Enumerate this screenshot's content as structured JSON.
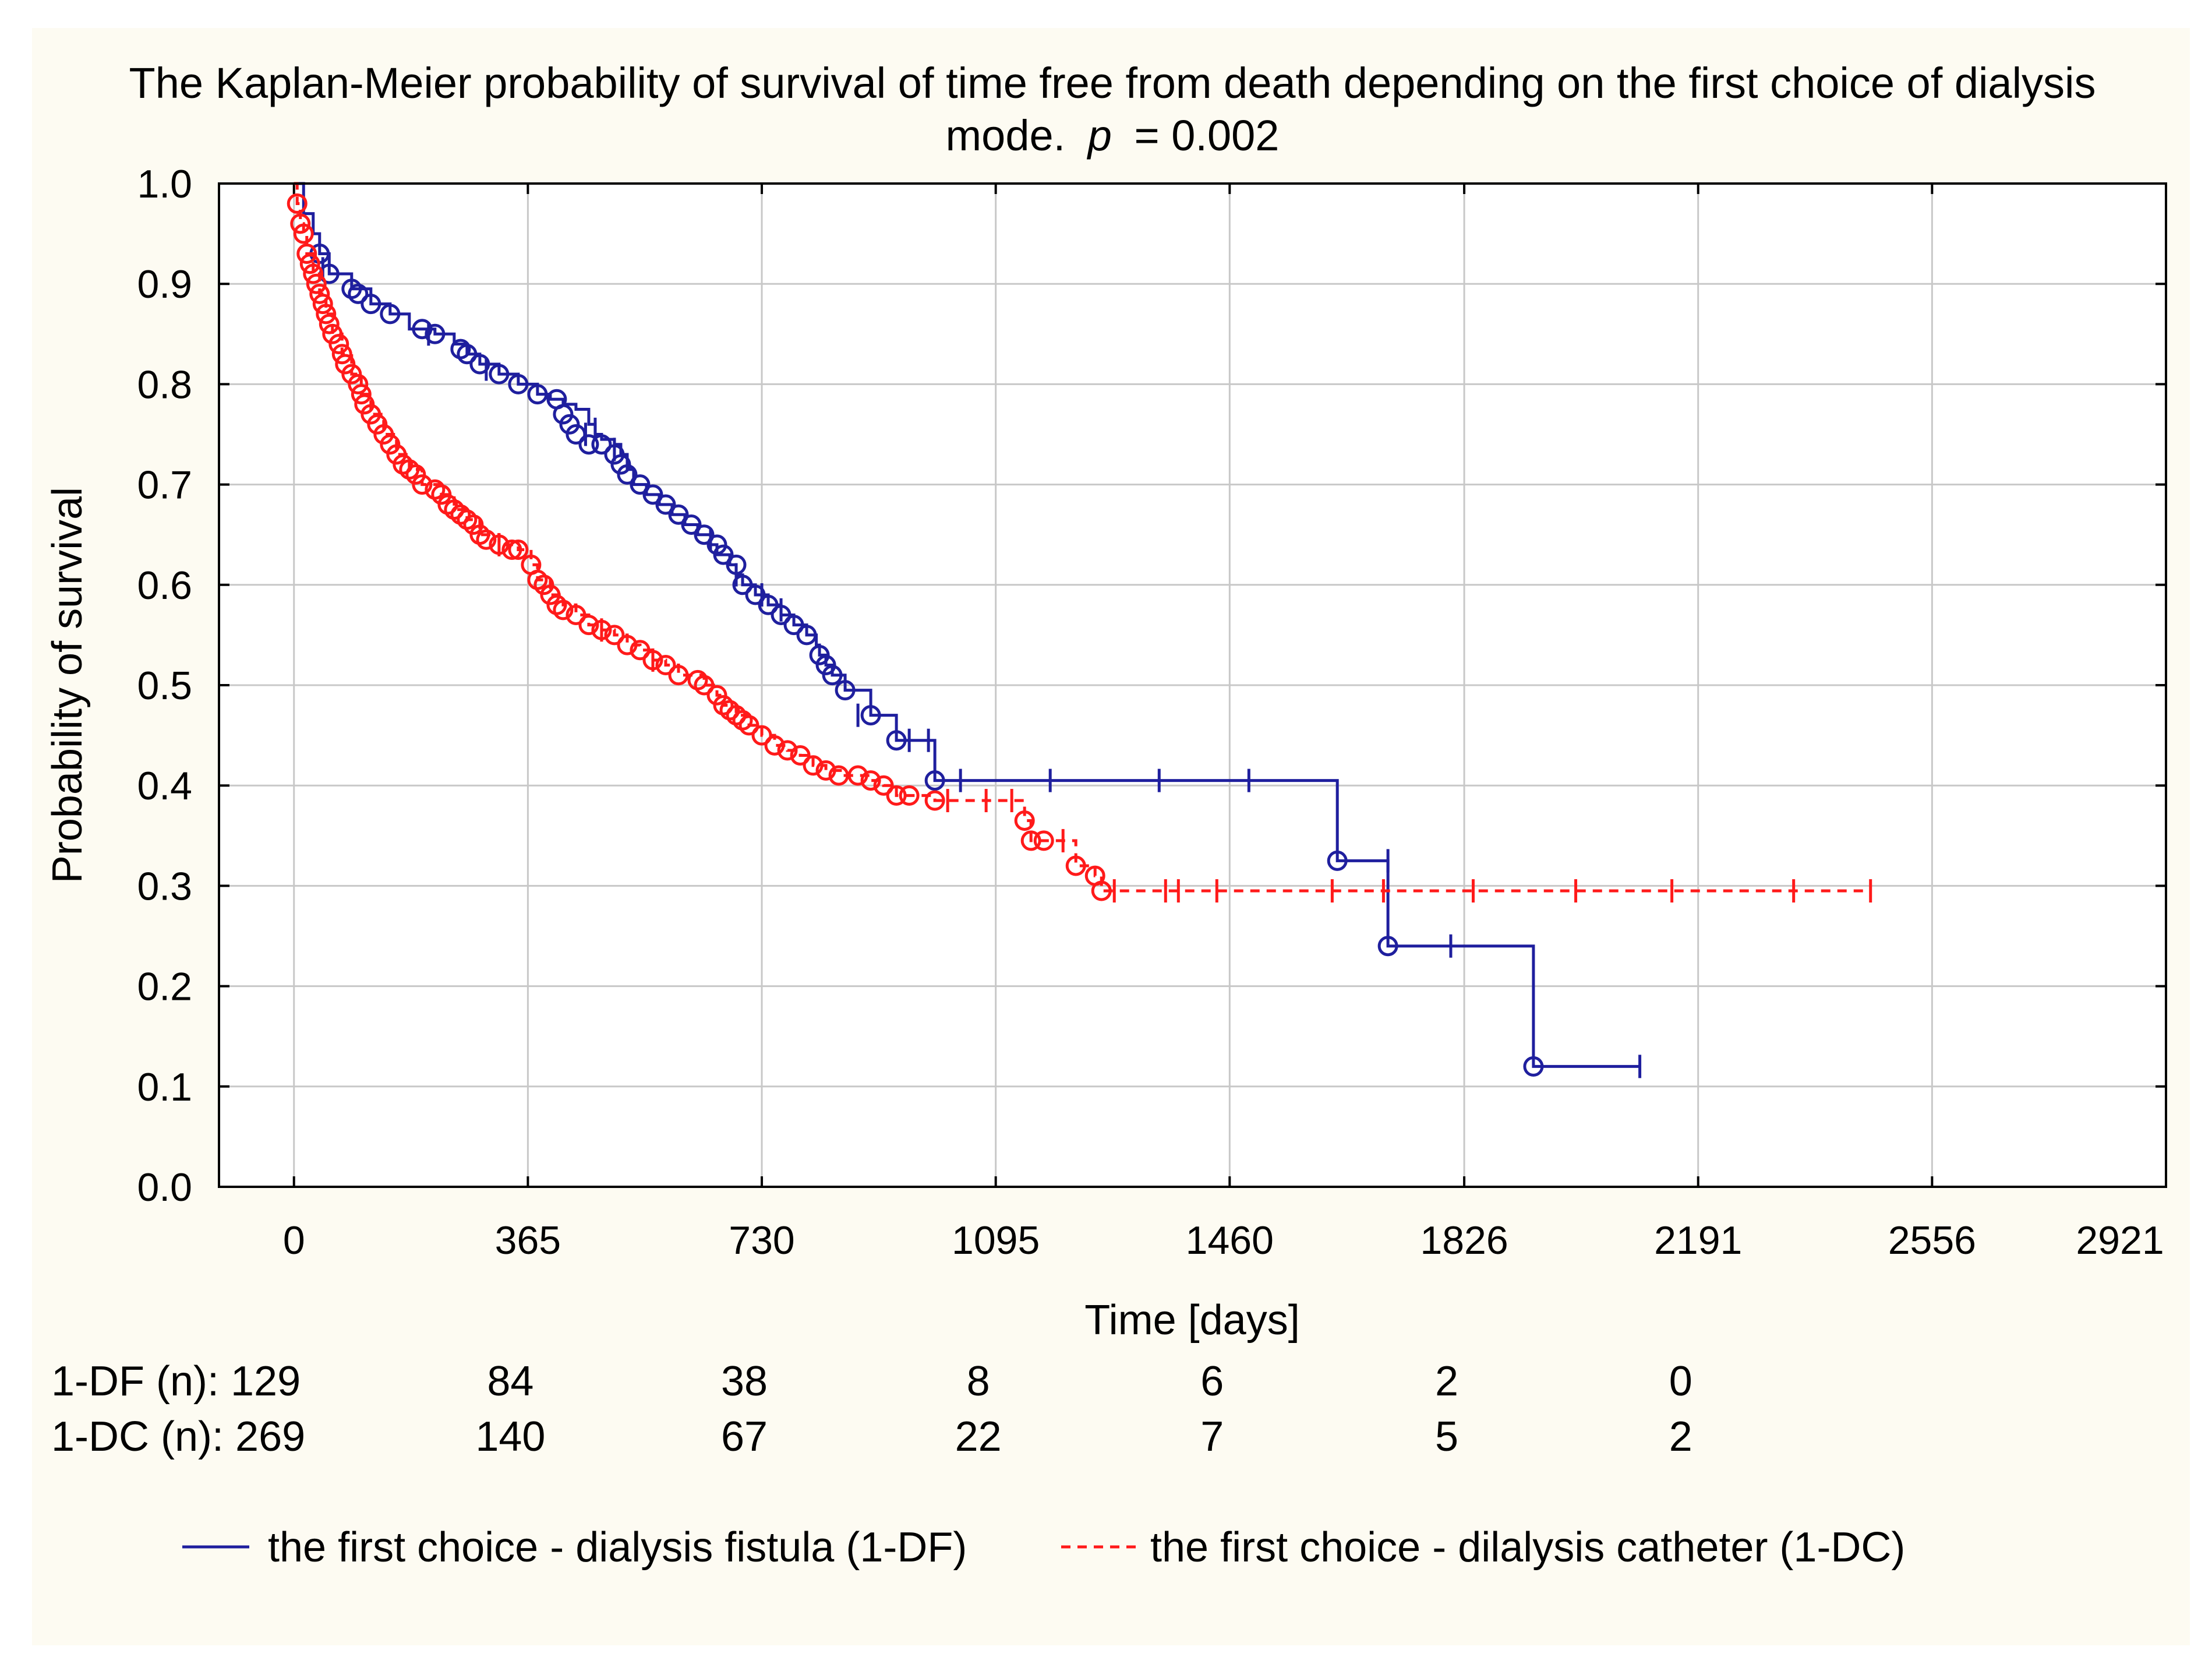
{
  "chart_data": {
    "type": "line",
    "subtype": "kaplan-meier",
    "title": "The Kaplan-Meier probability of survival of time free from death depending on the first choice of dialysis",
    "title_line2_prefix": "mode.",
    "title_p_symbol": "p",
    "title_p_value": "= 0.002",
    "xlabel": "Time [days]",
    "ylabel": "Probability of survival",
    "xlim": [
      -117,
      2921
    ],
    "ylim": [
      0,
      1.0
    ],
    "x_ticks": [
      "0",
      "365",
      "730",
      "1095",
      "1460",
      "1826",
      "2191",
      "2556",
      "2921"
    ],
    "y_ticks": [
      "0.0",
      "0.1",
      "0.2",
      "0.3",
      "0.4",
      "0.5",
      "0.6",
      "0.7",
      "0.8",
      "0.9",
      "1.0"
    ],
    "grid": true,
    "colors": {
      "plot_bg": "#ffffff",
      "figure_bg": "#fdfbf2",
      "df": "#1f1f9e",
      "dc": "#ff1a1a",
      "grid": "#c8c8c8"
    },
    "risk_table": {
      "x_positions": [
        0,
        365,
        730,
        1095,
        1460,
        1826,
        2191
      ],
      "rows": [
        {
          "label": "1-DF (n): 129",
          "values": [
            "84",
            "38",
            "8",
            "6",
            "2",
            "0"
          ]
        },
        {
          "label": "1-DC (n): 269",
          "values": [
            "140",
            "67",
            "22",
            "7",
            "5",
            "2"
          ]
        }
      ]
    },
    "series": [
      {
        "name": "the first choice - dialysis fistula (1-DF)",
        "style": "solid",
        "steps": [
          [
            0,
            1.0
          ],
          [
            15,
            0.97
          ],
          [
            30,
            0.95
          ],
          [
            40,
            0.93
          ],
          [
            55,
            0.91
          ],
          [
            90,
            0.895
          ],
          [
            120,
            0.88
          ],
          [
            150,
            0.87
          ],
          [
            180,
            0.855
          ],
          [
            220,
            0.85
          ],
          [
            250,
            0.84
          ],
          [
            270,
            0.83
          ],
          [
            290,
            0.82
          ],
          [
            320,
            0.81
          ],
          [
            350,
            0.8
          ],
          [
            380,
            0.79
          ],
          [
            400,
            0.785
          ],
          [
            420,
            0.78
          ],
          [
            440,
            0.775
          ],
          [
            460,
            0.76
          ],
          [
            470,
            0.75
          ],
          [
            480,
            0.745
          ],
          [
            500,
            0.74
          ],
          [
            510,
            0.73
          ],
          [
            520,
            0.715
          ],
          [
            530,
            0.7
          ],
          [
            550,
            0.69
          ],
          [
            570,
            0.68
          ],
          [
            590,
            0.67
          ],
          [
            610,
            0.66
          ],
          [
            630,
            0.65
          ],
          [
            650,
            0.64
          ],
          [
            660,
            0.63
          ],
          [
            680,
            0.62
          ],
          [
            690,
            0.61
          ],
          [
            700,
            0.6
          ],
          [
            720,
            0.59
          ],
          [
            740,
            0.58
          ],
          [
            760,
            0.57
          ],
          [
            780,
            0.56
          ],
          [
            800,
            0.55
          ],
          [
            815,
            0.54
          ],
          [
            820,
            0.53
          ],
          [
            830,
            0.52
          ],
          [
            840,
            0.51
          ],
          [
            860,
            0.495
          ],
          [
            900,
            0.47
          ],
          [
            940,
            0.445
          ],
          [
            1000,
            0.405
          ],
          [
            1628,
            0.325
          ],
          [
            1707,
            0.24
          ],
          [
            1934,
            0.12
          ],
          [
            2100,
            0.12
          ]
        ],
        "events": [
          [
            40,
            0.93
          ],
          [
            55,
            0.91
          ],
          [
            90,
            0.895
          ],
          [
            100,
            0.89
          ],
          [
            120,
            0.88
          ],
          [
            150,
            0.87
          ],
          [
            200,
            0.855
          ],
          [
            220,
            0.85
          ],
          [
            260,
            0.835
          ],
          [
            270,
            0.83
          ],
          [
            290,
            0.82
          ],
          [
            320,
            0.81
          ],
          [
            350,
            0.8
          ],
          [
            380,
            0.79
          ],
          [
            410,
            0.785
          ],
          [
            420,
            0.77
          ],
          [
            430,
            0.76
          ],
          [
            440,
            0.75
          ],
          [
            460,
            0.74
          ],
          [
            480,
            0.74
          ],
          [
            500,
            0.73
          ],
          [
            510,
            0.72
          ],
          [
            520,
            0.71
          ],
          [
            540,
            0.7
          ],
          [
            560,
            0.69
          ],
          [
            580,
            0.68
          ],
          [
            600,
            0.67
          ],
          [
            620,
            0.66
          ],
          [
            640,
            0.65
          ],
          [
            660,
            0.64
          ],
          [
            670,
            0.63
          ],
          [
            690,
            0.62
          ],
          [
            700,
            0.6
          ],
          [
            720,
            0.59
          ],
          [
            740,
            0.58
          ],
          [
            760,
            0.57
          ],
          [
            780,
            0.56
          ],
          [
            800,
            0.55
          ],
          [
            820,
            0.53
          ],
          [
            830,
            0.52
          ],
          [
            840,
            0.51
          ],
          [
            860,
            0.495
          ],
          [
            900,
            0.47
          ],
          [
            940,
            0.445
          ],
          [
            1000,
            0.405
          ],
          [
            1628,
            0.325
          ],
          [
            1707,
            0.24
          ],
          [
            1934,
            0.12
          ]
        ],
        "censored": [
          [
            45,
            0.915
          ],
          [
            210,
            0.85
          ],
          [
            300,
            0.815
          ],
          [
            455,
            0.75
          ],
          [
            470,
            0.755
          ],
          [
            500,
            0.735
          ],
          [
            650,
            0.645
          ],
          [
            690,
            0.61
          ],
          [
            730,
            0.59
          ],
          [
            760,
            0.575
          ],
          [
            880,
            0.47
          ],
          [
            960,
            0.445
          ],
          [
            990,
            0.445
          ],
          [
            1040,
            0.405
          ],
          [
            1180,
            0.405
          ],
          [
            1350,
            0.405
          ],
          [
            1490,
            0.405
          ],
          [
            1707,
            0.325
          ],
          [
            1805,
            0.24
          ],
          [
            2100,
            0.12
          ]
        ]
      },
      {
        "name": "the first choice - dilalysis catheter (1-DC)",
        "style": "dashed",
        "steps": [
          [
            0,
            1.0
          ],
          [
            5,
            0.98
          ],
          [
            10,
            0.96
          ],
          [
            15,
            0.95
          ],
          [
            20,
            0.93
          ],
          [
            30,
            0.91
          ],
          [
            40,
            0.89
          ],
          [
            50,
            0.87
          ],
          [
            60,
            0.85
          ],
          [
            75,
            0.83
          ],
          [
            90,
            0.81
          ],
          [
            105,
            0.79
          ],
          [
            120,
            0.77
          ],
          [
            140,
            0.75
          ],
          [
            160,
            0.73
          ],
          [
            180,
            0.715
          ],
          [
            200,
            0.7
          ],
          [
            230,
            0.69
          ],
          [
            250,
            0.675
          ],
          [
            270,
            0.665
          ],
          [
            290,
            0.65
          ],
          [
            320,
            0.64
          ],
          [
            350,
            0.635
          ],
          [
            370,
            0.62
          ],
          [
            380,
            0.605
          ],
          [
            400,
            0.59
          ],
          [
            420,
            0.58
          ],
          [
            440,
            0.57
          ],
          [
            460,
            0.56
          ],
          [
            480,
            0.555
          ],
          [
            500,
            0.55
          ],
          [
            520,
            0.54
          ],
          [
            540,
            0.535
          ],
          [
            560,
            0.525
          ],
          [
            580,
            0.52
          ],
          [
            600,
            0.51
          ],
          [
            640,
            0.5
          ],
          [
            660,
            0.49
          ],
          [
            670,
            0.48
          ],
          [
            690,
            0.47
          ],
          [
            710,
            0.46
          ],
          [
            730,
            0.45
          ],
          [
            750,
            0.44
          ],
          [
            770,
            0.435
          ],
          [
            790,
            0.43
          ],
          [
            810,
            0.42
          ],
          [
            830,
            0.415
          ],
          [
            860,
            0.41
          ],
          [
            900,
            0.405
          ],
          [
            920,
            0.4
          ],
          [
            940,
            0.39
          ],
          [
            1000,
            0.385
          ],
          [
            1140,
            0.365
          ],
          [
            1150,
            0.345
          ],
          [
            1220,
            0.32
          ],
          [
            1250,
            0.31
          ],
          [
            1260,
            0.295
          ],
          [
            2460,
            0.295
          ]
        ],
        "events": [
          [
            5,
            0.98
          ],
          [
            10,
            0.96
          ],
          [
            15,
            0.95
          ],
          [
            20,
            0.93
          ],
          [
            25,
            0.92
          ],
          [
            30,
            0.91
          ],
          [
            35,
            0.9
          ],
          [
            40,
            0.89
          ],
          [
            45,
            0.88
          ],
          [
            50,
            0.87
          ],
          [
            55,
            0.86
          ],
          [
            60,
            0.85
          ],
          [
            70,
            0.84
          ],
          [
            75,
            0.83
          ],
          [
            80,
            0.82
          ],
          [
            90,
            0.81
          ],
          [
            100,
            0.8
          ],
          [
            105,
            0.79
          ],
          [
            110,
            0.78
          ],
          [
            120,
            0.77
          ],
          [
            130,
            0.76
          ],
          [
            140,
            0.75
          ],
          [
            150,
            0.74
          ],
          [
            160,
            0.73
          ],
          [
            170,
            0.72
          ],
          [
            180,
            0.715
          ],
          [
            190,
            0.71
          ],
          [
            200,
            0.7
          ],
          [
            220,
            0.695
          ],
          [
            230,
            0.69
          ],
          [
            240,
            0.68
          ],
          [
            250,
            0.675
          ],
          [
            260,
            0.67
          ],
          [
            270,
            0.665
          ],
          [
            280,
            0.66
          ],
          [
            290,
            0.65
          ],
          [
            300,
            0.645
          ],
          [
            320,
            0.64
          ],
          [
            340,
            0.635
          ],
          [
            350,
            0.635
          ],
          [
            370,
            0.62
          ],
          [
            380,
            0.605
          ],
          [
            390,
            0.6
          ],
          [
            400,
            0.59
          ],
          [
            410,
            0.58
          ],
          [
            420,
            0.575
          ],
          [
            440,
            0.57
          ],
          [
            460,
            0.56
          ],
          [
            480,
            0.555
          ],
          [
            500,
            0.55
          ],
          [
            520,
            0.54
          ],
          [
            540,
            0.535
          ],
          [
            560,
            0.525
          ],
          [
            580,
            0.52
          ],
          [
            600,
            0.51
          ],
          [
            630,
            0.505
          ],
          [
            640,
            0.5
          ],
          [
            660,
            0.49
          ],
          [
            670,
            0.48
          ],
          [
            680,
            0.475
          ],
          [
            690,
            0.47
          ],
          [
            700,
            0.465
          ],
          [
            710,
            0.46
          ],
          [
            730,
            0.45
          ],
          [
            750,
            0.44
          ],
          [
            770,
            0.435
          ],
          [
            790,
            0.43
          ],
          [
            810,
            0.42
          ],
          [
            830,
            0.415
          ],
          [
            850,
            0.41
          ],
          [
            880,
            0.41
          ],
          [
            900,
            0.405
          ],
          [
            920,
            0.4
          ],
          [
            940,
            0.39
          ],
          [
            960,
            0.39
          ],
          [
            1000,
            0.385
          ],
          [
            1140,
            0.365
          ],
          [
            1150,
            0.345
          ],
          [
            1170,
            0.345
          ],
          [
            1220,
            0.32
          ],
          [
            1250,
            0.31
          ],
          [
            1260,
            0.295
          ]
        ],
        "censored": [
          [
            320,
            0.64
          ],
          [
            480,
            0.555
          ],
          [
            560,
            0.525
          ],
          [
            1020,
            0.385
          ],
          [
            1080,
            0.385
          ],
          [
            1120,
            0.385
          ],
          [
            1200,
            0.345
          ],
          [
            1280,
            0.295
          ],
          [
            1360,
            0.295
          ],
          [
            1380,
            0.295
          ],
          [
            1440,
            0.295
          ],
          [
            1620,
            0.295
          ],
          [
            1700,
            0.295
          ],
          [
            1840,
            0.295
          ],
          [
            2000,
            0.295
          ],
          [
            2150,
            0.295
          ],
          [
            2340,
            0.295
          ],
          [
            2460,
            0.295
          ]
        ]
      }
    ]
  }
}
